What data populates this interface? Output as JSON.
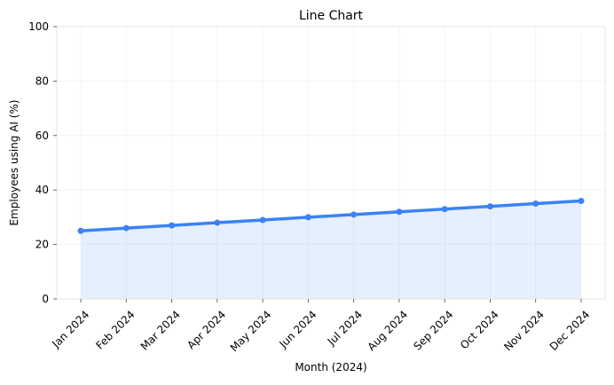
{
  "chart_data": {
    "type": "line",
    "title": "Line Chart",
    "xlabel": "Month (2024)",
    "ylabel": "Employees using AI (%)",
    "categories": [
      "Jan 2024",
      "Feb 2024",
      "Mar 2024",
      "Apr 2024",
      "May 2024",
      "Jun 2024",
      "Jul 2024",
      "Aug 2024",
      "Sep 2024",
      "Oct 2024",
      "Nov 2024",
      "Dec 2024"
    ],
    "series": [
      {
        "values": [
          25,
          26,
          27,
          28,
          29,
          30,
          31,
          32,
          33,
          34,
          35,
          36
        ]
      }
    ],
    "ylim": [
      0,
      100
    ],
    "yticks": [
      0,
      20,
      40,
      60,
      80,
      100
    ],
    "grid": true,
    "area_fill": true,
    "colors": {
      "line": "#3b82f6",
      "area": "#3b82f6",
      "markers": "#3b82f6"
    }
  }
}
